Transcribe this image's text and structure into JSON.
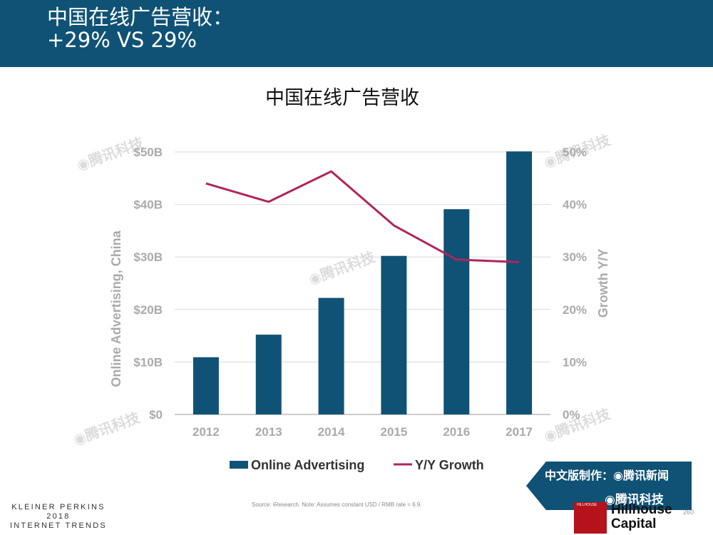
{
  "header": {
    "title": "中国在线广告营收：\n+29% VS 29%"
  },
  "chart_data": {
    "type": "bar",
    "title": "中国在线广告营收",
    "categories": [
      "2012",
      "2013",
      "2014",
      "2015",
      "2016",
      "2017"
    ],
    "series": [
      {
        "name": "Online Advertising",
        "kind": "bar",
        "axis": "left",
        "values": [
          10.9,
          15.2,
          22.2,
          30.2,
          39.1,
          50.1
        ]
      },
      {
        "name": "Y/Y Growth",
        "kind": "line",
        "axis": "right",
        "values": [
          44,
          40.5,
          46.3,
          36,
          29.5,
          29
        ]
      }
    ],
    "y_left": {
      "label": "Online Advertising, China",
      "ylim": [
        0,
        50
      ],
      "ticks": [
        "$0",
        "$10B",
        "$20B",
        "$30B",
        "$40B",
        "$50B"
      ]
    },
    "y_right": {
      "label": "Growth Y/Y",
      "ylim": [
        0,
        50
      ],
      "ticks": [
        "0%",
        "10%",
        "20%",
        "30%",
        "40%",
        "50%"
      ]
    },
    "grid": true,
    "legend": "bottom",
    "colors": {
      "bar": "#0f5276",
      "line": "#b0245a"
    }
  },
  "footer": {
    "kp_line1": "KLEINER PERKINS",
    "kp_line2": "2018",
    "kp_line3": "INTERNET TRENDS",
    "source": "Source: iResearch.  Note: Assumes constant USD / RMB rate = 6.9.",
    "page": "260"
  },
  "badge": {
    "line1": "中文版制作：◉腾讯新闻",
    "line2": "◉腾讯科技"
  },
  "hillhouse": {
    "small": "HILLHOUSE",
    "name": "Hillhouse\nCapital"
  },
  "watermark": "◉腾讯科技"
}
